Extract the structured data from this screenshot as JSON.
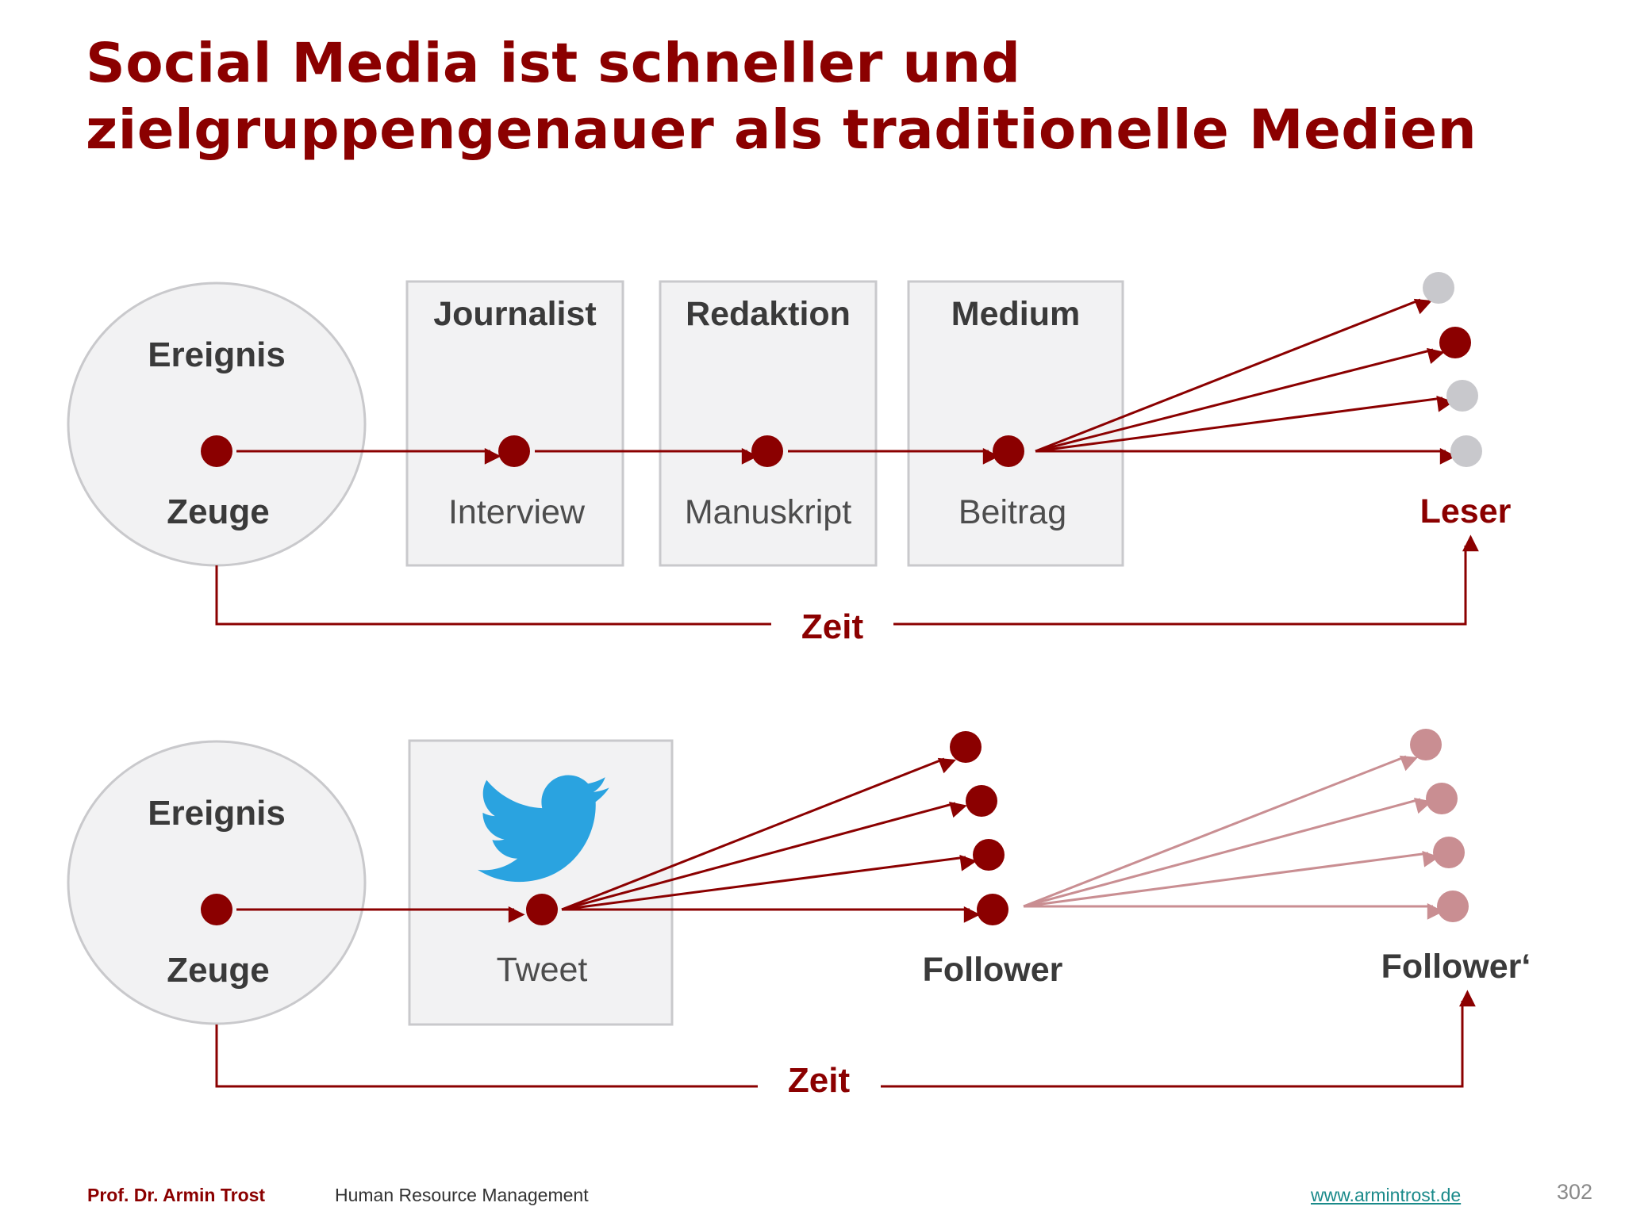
{
  "title": {
    "line1": "Social Media ist schneller und",
    "line2": "zielgruppengenauer als traditionelle Medien"
  },
  "traditional": {
    "event_label": "Ereignis",
    "witness_label": "Zeuge",
    "stages": [
      {
        "heading": "Journalist",
        "item": "Interview"
      },
      {
        "heading": "Redaktion",
        "item": "Manuskript"
      },
      {
        "heading": "Medium",
        "item": "Beitrag"
      }
    ],
    "audience_label": "Leser",
    "time_label": "Zeit"
  },
  "social": {
    "event_label": "Ereignis",
    "witness_label": "Zeuge",
    "channel_item": "Tweet",
    "channel_icon": "twitter-bird-icon",
    "followers_label": "Follower",
    "followers2_label": "Follower‘",
    "time_label": "Zeit"
  },
  "colors": {
    "accent": "#8b0000",
    "faded_accent": "#c98e92",
    "node_gray": "#c8c8cc",
    "twitter_blue": "#2aa3e0"
  },
  "footer": {
    "author": "Prof. Dr. Armin Trost",
    "course": "Human Resource Management",
    "url": "www.armintrost.de",
    "page": "302"
  }
}
